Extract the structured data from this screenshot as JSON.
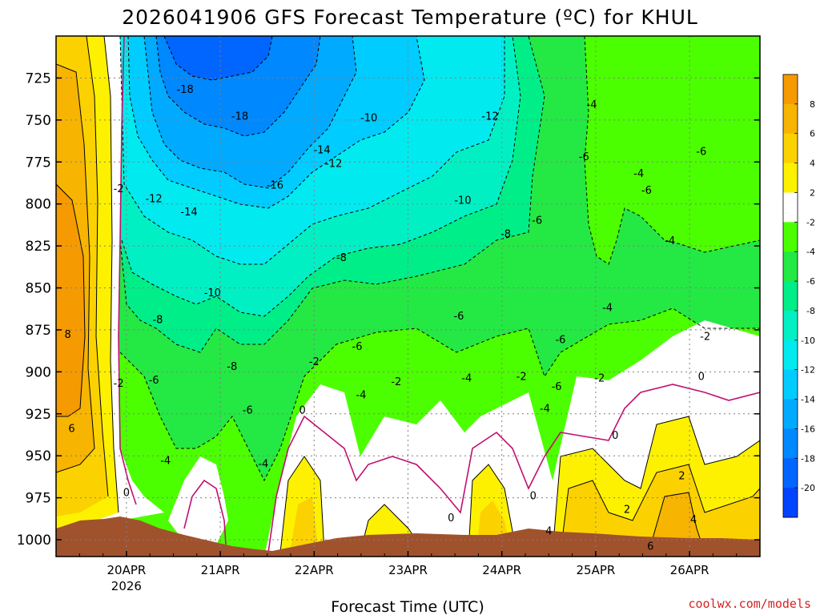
{
  "chart_data": {
    "type": "contour",
    "title": "2026041906 GFS Forecast Temperature (ºC) for KHUL",
    "xlabel": "Forecast Time (UTC)",
    "ylabel": "",
    "credit": "coolwx.com/models",
    "x_ticks": [
      {
        "label": "20APR",
        "sublabel": "2026",
        "hour": 18
      },
      {
        "label": "21APR",
        "hour": 42
      },
      {
        "label": "22APR",
        "hour": 66
      },
      {
        "label": "23APR",
        "hour": 90
      },
      {
        "label": "24APR",
        "hour": 114
      },
      {
        "label": "25APR",
        "hour": 138
      },
      {
        "label": "26APR",
        "hour": 162
      }
    ],
    "xlim": [
      0,
      180
    ],
    "y_ticks": [
      "725",
      "750",
      "775",
      "800",
      "825",
      "850",
      "875",
      "900",
      "925",
      "950",
      "975",
      "1000"
    ],
    "ylim": [
      700,
      1010
    ],
    "colorbar": {
      "levels": [
        "8",
        "6",
        "4",
        "2",
        "-2",
        "-4",
        "-6",
        "-8",
        "-10",
        "-12",
        "-14",
        "-16",
        "-18",
        "-20"
      ],
      "colors": [
        "#f59a00",
        "#f7b400",
        "#fbd200",
        "#fdf100",
        "#ffffff",
        "#4cff00",
        "#24e844",
        "#00ee88",
        "#00f0c4",
        "#00eaf0",
        "#00ccff",
        "#00aaff",
        "#0088ff",
        "#0066ff",
        "#0044ff"
      ]
    },
    "contour_labels": [
      {
        "text": "-18",
        "hour": 33,
        "p": 732
      },
      {
        "text": "-18",
        "hour": 47,
        "p": 748
      },
      {
        "text": "-16",
        "hour": 56,
        "p": 789
      },
      {
        "text": "-14",
        "hour": 68,
        "p": 768
      },
      {
        "text": "-12",
        "hour": 71,
        "p": 776
      },
      {
        "text": "-14",
        "hour": 34,
        "p": 805
      },
      {
        "text": "-12",
        "hour": 25,
        "p": 797
      },
      {
        "text": "-10",
        "hour": 80,
        "p": 749
      },
      {
        "text": "-12",
        "hour": 111,
        "p": 748
      },
      {
        "text": "-10",
        "hour": 104,
        "p": 798
      },
      {
        "text": "-10",
        "hour": 40,
        "p": 853
      },
      {
        "text": "-8",
        "hour": 26,
        "p": 869
      },
      {
        "text": "-8",
        "hour": 73,
        "p": 832
      },
      {
        "text": "-8",
        "hour": 115,
        "p": 818
      },
      {
        "text": "-8",
        "hour": 45,
        "p": 897
      },
      {
        "text": "-6",
        "hour": 25,
        "p": 905
      },
      {
        "text": "-6",
        "hour": 49,
        "p": 923
      },
      {
        "text": "-6",
        "hour": 77,
        "p": 885
      },
      {
        "text": "-6",
        "hour": 103,
        "p": 867
      },
      {
        "text": "-6",
        "hour": 123,
        "p": 810
      },
      {
        "text": "-6",
        "hour": 129,
        "p": 881
      },
      {
        "text": "-6",
        "hour": 135,
        "p": 772
      },
      {
        "text": "-6",
        "hour": 165,
        "p": 769
      },
      {
        "text": "-4",
        "hour": 28,
        "p": 953
      },
      {
        "text": "-4",
        "hour": 53,
        "p": 955
      },
      {
        "text": "-4",
        "hour": 78,
        "p": 914
      },
      {
        "text": "-4",
        "hour": 105,
        "p": 904
      },
      {
        "text": "-4",
        "hour": 125,
        "p": 922
      },
      {
        "text": "-4",
        "hour": 137,
        "p": 741
      },
      {
        "text": "-4",
        "hour": 149,
        "p": 782
      },
      {
        "text": "-4",
        "hour": 141,
        "p": 862
      },
      {
        "text": "-4",
        "hour": 157,
        "p": 822
      },
      {
        "text": "-6",
        "hour": 151,
        "p": 792
      },
      {
        "text": "-6",
        "hour": 128,
        "p": 909
      },
      {
        "text": "-2",
        "hour": 16,
        "p": 907
      },
      {
        "text": "-2",
        "hour": 16,
        "p": 791
      },
      {
        "text": "-2",
        "hour": 66,
        "p": 894
      },
      {
        "text": "-2",
        "hour": 87,
        "p": 906
      },
      {
        "text": "-2",
        "hour": 119,
        "p": 903
      },
      {
        "text": "-2",
        "hour": 139,
        "p": 904
      },
      {
        "text": "-2",
        "hour": 166,
        "p": 879
      },
      {
        "text": "0",
        "hour": 18,
        "p": 972
      },
      {
        "text": "0",
        "hour": 63,
        "p": 923
      },
      {
        "text": "0",
        "hour": 101,
        "p": 987
      },
      {
        "text": "0",
        "hour": 122,
        "p": 974
      },
      {
        "text": "0",
        "hour": 143,
        "p": 938
      },
      {
        "text": "0",
        "hour": 165,
        "p": 903
      },
      {
        "text": "2",
        "hour": 160,
        "p": 962
      },
      {
        "text": "2",
        "hour": 146,
        "p": 982
      },
      {
        "text": "4",
        "hour": 126,
        "p": 995
      },
      {
        "text": "4",
        "hour": 163,
        "p": 988
      },
      {
        "text": "6",
        "hour": 4,
        "p": 934
      },
      {
        "text": "6",
        "hour": 152,
        "p": 1004
      },
      {
        "text": "8",
        "hour": 3,
        "p": 878
      }
    ]
  }
}
